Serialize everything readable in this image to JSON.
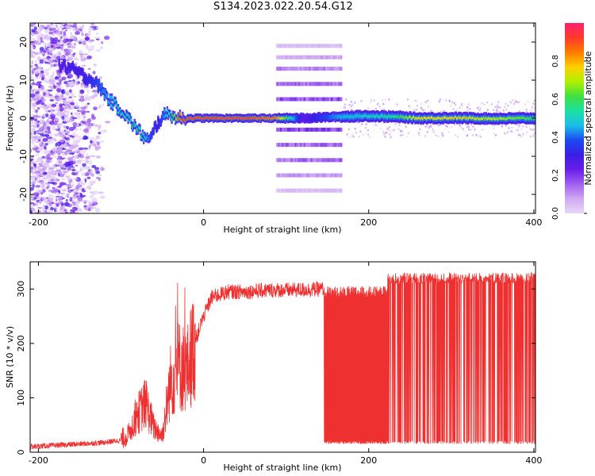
{
  "title": "S134.2023.022.20.54.G12",
  "chart_data": [
    {
      "type": "heatmap",
      "title": "S134.2023.022.20.54.G12",
      "xlabel": "Height of straight line (km)",
      "ylabel": "Frequency (Hz)",
      "xlim": [
        -210,
        402
      ],
      "ylim": [
        -25,
        25
      ],
      "xticks": [
        -200,
        0,
        200,
        400
      ],
      "yticks": [
        -20,
        -10,
        0,
        10,
        20
      ],
      "colorbar": {
        "label": "Normalized spectral amplitude",
        "range": [
          0,
          1
        ],
        "ticks": [
          0.0,
          0.2,
          0.4,
          0.6,
          0.8
        ],
        "colors": [
          "#e8d8f8",
          "#cfa8f2",
          "#a060f0",
          "#6a1ee8",
          "#3a1ee6",
          "#1a4af0",
          "#1abee8",
          "#1ae0a0",
          "#40e040",
          "#b0f000",
          "#ffd000",
          "#ff7a00",
          "#ff3a2a",
          "#ff2070"
        ]
      },
      "ridge": {
        "x": [
          -175,
          -160,
          -145,
          -135,
          -125,
          -115,
          -105,
          -95,
          -88,
          -80,
          -72,
          -65,
          -60,
          -55,
          -50,
          -46,
          -42,
          -38,
          -34,
          -30,
          -20,
          0,
          50,
          88,
          120,
          165,
          200,
          230,
          260,
          300,
          350,
          400
        ],
        "freq": [
          14,
          13,
          11,
          10,
          8,
          5,
          3,
          1,
          -1,
          -3,
          -5,
          -6,
          -3,
          -1,
          0,
          1,
          2,
          0,
          0.5,
          0,
          0,
          0,
          0,
          0,
          0,
          0.4,
          0.6,
          0.4,
          0,
          0.1,
          -0.1,
          0
        ],
        "amplitude": [
          0.25,
          0.3,
          0.3,
          0.35,
          0.4,
          0.45,
          0.5,
          0.5,
          0.5,
          0.55,
          0.5,
          0.4,
          0.35,
          0.3,
          0.4,
          0.45,
          0.5,
          0.6,
          0.65,
          0.85,
          0.9,
          0.9,
          0.9,
          0.85,
          0.25,
          0.45,
          0.5,
          0.55,
          0.75,
          0.75,
          0.7,
          0.6
        ]
      },
      "sidebands": {
        "x_range": [
          88,
          165
        ],
        "freq": [
          -19,
          -15,
          -11,
          -7,
          -3,
          5,
          9,
          13,
          16,
          19
        ],
        "amplitude": [
          0.05,
          0.1,
          0.15,
          0.15,
          0.2,
          0.18,
          0.15,
          0.12,
          0.08,
          0.05
        ]
      },
      "noise_region": {
        "x_range": [
          -210,
          -130
        ],
        "freq_range": [
          -25,
          25
        ],
        "amplitude": 0.1
      }
    },
    {
      "type": "line",
      "xlabel": "Height of straight line (km)",
      "ylabel": "SNR (10 * v/v)",
      "xlim": [
        -210,
        402
      ],
      "ylim": [
        0,
        350
      ],
      "xticks": [
        -200,
        0,
        200,
        400
      ],
      "yticks": [
        0,
        100,
        200,
        300
      ],
      "color": "#ee3030",
      "envelope": {
        "x": [
          -210,
          -150,
          -120,
          -100,
          -90,
          -80,
          -70,
          -60,
          -50,
          -40,
          -30,
          -20,
          -10,
          0,
          10,
          20,
          30,
          50,
          80,
          110,
          145
        ],
        "y": [
          10,
          15,
          18,
          22,
          35,
          70,
          90,
          45,
          30,
          130,
          160,
          150,
          205,
          250,
          285,
          290,
          295,
          295,
          298,
          298,
          300
        ]
      },
      "dropout_zones": [
        {
          "x_range": [
            146,
            223
          ],
          "high": 295,
          "low": 15
        },
        {
          "x_range": [
            223,
            402
          ],
          "high": 320,
          "low": 15
        }
      ]
    }
  ]
}
